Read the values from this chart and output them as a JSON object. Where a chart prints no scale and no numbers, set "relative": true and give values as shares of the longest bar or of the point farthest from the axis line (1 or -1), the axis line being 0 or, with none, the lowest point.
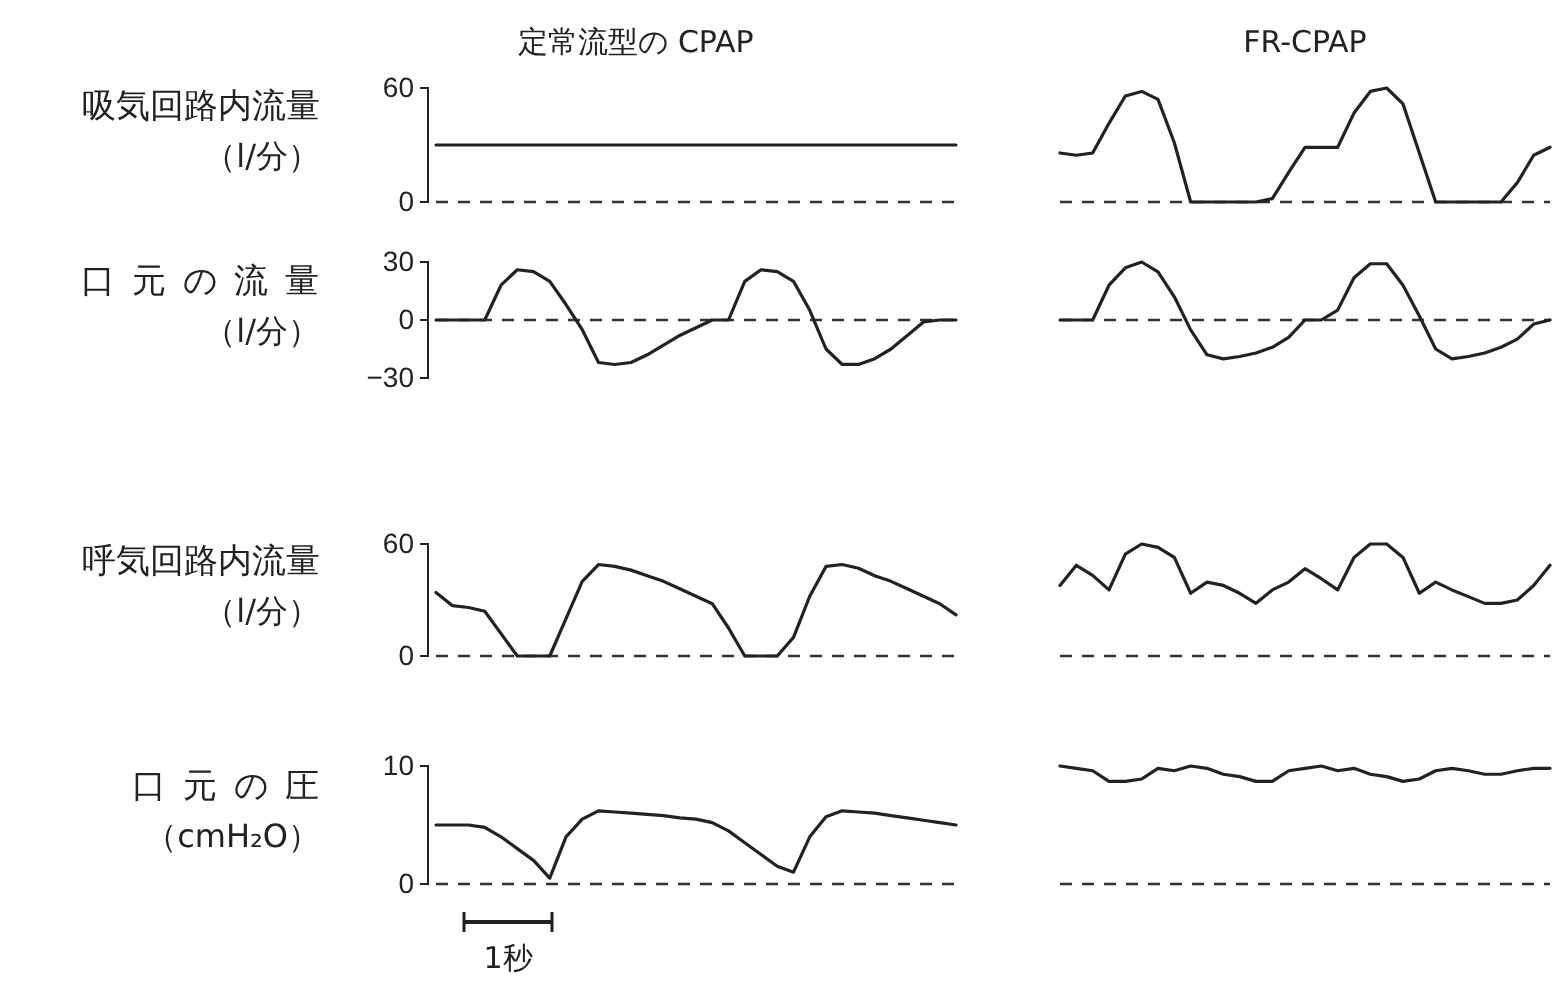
{
  "chart_data": [
    {
      "type": "line",
      "title": "定常流型の CPAP",
      "ylabel": "吸気回路内流量（l/分）",
      "categories": [
        null,
        null,
        null,
        null,
        null,
        null,
        null,
        null,
        null,
        null,
        null,
        null,
        null,
        null,
        null,
        null,
        null,
        null,
        null,
        null,
        null,
        null,
        null,
        null,
        null,
        null,
        null,
        null,
        null,
        null,
        null,
        null,
        null
      ],
      "values": [
        30,
        30,
        30,
        30,
        30,
        30,
        30,
        30,
        30,
        30,
        30,
        30,
        30,
        30,
        30,
        30,
        30,
        30,
        30,
        30,
        30,
        30,
        30,
        30,
        30,
        30,
        30,
        30,
        30,
        30,
        30,
        30,
        30
      ],
      "color": "#222222",
      "ylim": [
        0,
        60
      ],
      "yticks": [
        0,
        60
      ],
      "tick_labels": "y",
      "ref_lines": [
        {
          "axis": "y",
          "value": 0,
          "line_style": "dashed"
        }
      ]
    },
    {
      "type": "line",
      "title": "FR-CPAP",
      "categories": [
        null,
        null,
        null,
        null,
        null,
        null,
        null,
        null,
        null,
        null,
        null,
        null,
        null,
        null,
        null,
        null,
        null,
        null,
        null,
        null,
        null,
        null,
        null,
        null,
        null,
        null,
        null,
        null,
        null,
        null,
        null
      ],
      "values": [
        0.43,
        0.41,
        0.43,
        0.69,
        0.93,
        0.97,
        0.9,
        0.52,
        0,
        0,
        0,
        0,
        0,
        0.03,
        0.26,
        0.48,
        0.48,
        0.48,
        0.78,
        0.97,
        1,
        0.86,
        0.43,
        0,
        0,
        0,
        0,
        0,
        0.17,
        0.41,
        0.48
      ],
      "color": "#222222",
      "relative": true,
      "tick_labels": false
    },
    {
      "type": "line",
      "ylabel": "口元の流量（l/分）",
      "categories": [
        null,
        null,
        null,
        null,
        null,
        null,
        null,
        null,
        null,
        null,
        null,
        null,
        null,
        null,
        null,
        null,
        null,
        null,
        null,
        null,
        null,
        null,
        null,
        null,
        null,
        null,
        null,
        null,
        null,
        null,
        null,
        null,
        null
      ],
      "values": [
        0,
        0,
        0,
        0,
        18,
        26,
        25,
        20,
        8,
        -5,
        -22,
        -23,
        -22,
        -18,
        -13,
        -8,
        -4,
        0,
        0,
        20,
        26,
        25,
        20,
        5,
        -15,
        -23,
        -23,
        -20,
        -15,
        -8,
        -1,
        0,
        0
      ],
      "color": "#222222",
      "ylim": [
        -30,
        30
      ],
      "yticks": [
        {
          "value": -30,
          "label": "−30"
        },
        0,
        30
      ],
      "tick_labels": "y",
      "ref_lines": [
        {
          "axis": "y",
          "value": 0,
          "line_style": "dashed"
        }
      ]
    },
    {
      "type": "line",
      "categories": [
        null,
        null,
        null,
        null,
        null,
        null,
        null,
        null,
        null,
        null,
        null,
        null,
        null,
        null,
        null,
        null,
        null,
        null,
        null,
        null,
        null,
        null,
        null,
        null,
        null,
        null,
        null,
        null,
        null,
        null,
        null
      ],
      "values": [
        0,
        0,
        0,
        0.6,
        0.9,
        1,
        0.83,
        0.4,
        -0.17,
        -0.6,
        -0.67,
        -0.63,
        -0.57,
        -0.47,
        -0.3,
        0,
        0,
        0.17,
        0.73,
        0.97,
        0.97,
        0.6,
        0.07,
        -0.5,
        -0.67,
        -0.63,
        -0.57,
        -0.47,
        -0.33,
        -0.07,
        0
      ],
      "color": "#222222",
      "relative": true,
      "tick_labels": false,
      "ref_lines": [
        {
          "axis": "y",
          "value": 0,
          "line_style": "dashed"
        }
      ]
    },
    {
      "type": "line",
      "ylabel": "呼気回路内流量（l/分）",
      "categories": [
        null,
        null,
        null,
        null,
        null,
        null,
        null,
        null,
        null,
        null,
        null,
        null,
        null,
        null,
        null,
        null,
        null,
        null,
        null,
        null,
        null,
        null,
        null,
        null,
        null,
        null,
        null,
        null,
        null,
        null,
        null,
        null,
        null
      ],
      "values": [
        34,
        27,
        26,
        24,
        12,
        0,
        0,
        0,
        20,
        40,
        49,
        48,
        46,
        43,
        40,
        36,
        32,
        28,
        15,
        0,
        0,
        0,
        10,
        32,
        48,
        49,
        47,
        43,
        40,
        36,
        32,
        28,
        22
      ],
      "color": "#222222",
      "ylim": [
        0,
        60
      ],
      "yticks": [
        0,
        60
      ],
      "tick_labels": "y",
      "ref_lines": [
        {
          "axis": "y",
          "value": 0,
          "line_style": "dashed"
        }
      ]
    },
    {
      "type": "line",
      "categories": [
        null,
        null,
        null,
        null,
        null,
        null,
        null,
        null,
        null,
        null,
        null,
        null,
        null,
        null,
        null,
        null,
        null,
        null,
        null,
        null,
        null,
        null,
        null,
        null,
        null,
        null,
        null,
        null,
        null,
        null,
        null
      ],
      "values": [
        0.63,
        0.81,
        0.72,
        0.59,
        0.91,
        1,
        0.97,
        0.88,
        0.56,
        0.66,
        0.63,
        0.56,
        0.47,
        0.59,
        0.66,
        0.78,
        0.69,
        0.59,
        0.88,
        1,
        1,
        0.88,
        0.56,
        0.66,
        0.59,
        0.53,
        0.47,
        0.47,
        0.5,
        0.63,
        0.81
      ],
      "color": "#222222",
      "relative": true,
      "tick_labels": false
    },
    {
      "type": "line",
      "ylabel": "口元の圧（cmH₂O）",
      "annotations": [
        "1秒"
      ],
      "categories": [
        null,
        null,
        null,
        null,
        null,
        null,
        null,
        null,
        null,
        null,
        null,
        null,
        null,
        null,
        null,
        null,
        null,
        null,
        null,
        null,
        null,
        null,
        null,
        null,
        null,
        null,
        null,
        null,
        null,
        null,
        null,
        null,
        null
      ],
      "values": [
        5,
        5,
        5,
        4.8,
        4,
        3,
        2,
        0.5,
        4,
        5.5,
        6.2,
        6.1,
        6,
        5.9,
        5.8,
        5.6,
        5.5,
        5.2,
        4.5,
        3.5,
        2.5,
        1.5,
        1,
        4,
        5.7,
        6.2,
        6.1,
        6,
        5.8,
        5.6,
        5.4,
        5.2,
        5
      ],
      "color": "#222222",
      "ylim": [
        0,
        10
      ],
      "yticks": [
        0,
        10
      ],
      "tick_labels": "y",
      "ref_lines": [
        {
          "axis": "y",
          "value": 0,
          "line_style": "dashed"
        }
      ]
    },
    {
      "type": "line",
      "categories": [
        null,
        null,
        null,
        null,
        null,
        null,
        null,
        null,
        null,
        null,
        null,
        null,
        null,
        null,
        null,
        null,
        null,
        null,
        null,
        null,
        null,
        null,
        null,
        null,
        null,
        null,
        null,
        null,
        null,
        null,
        null
      ],
      "values": [
        1,
        0.98,
        0.96,
        0.87,
        0.87,
        0.89,
        0.98,
        0.96,
        1,
        0.98,
        0.93,
        0.91,
        0.87,
        0.87,
        0.96,
        0.98,
        1,
        0.96,
        0.98,
        0.93,
        0.91,
        0.87,
        0.89,
        0.96,
        0.98,
        0.96,
        0.93,
        0.93,
        0.96,
        0.98,
        0.98
      ],
      "color": "#222222",
      "relative": true,
      "tick_labels": false
    }
  ]
}
